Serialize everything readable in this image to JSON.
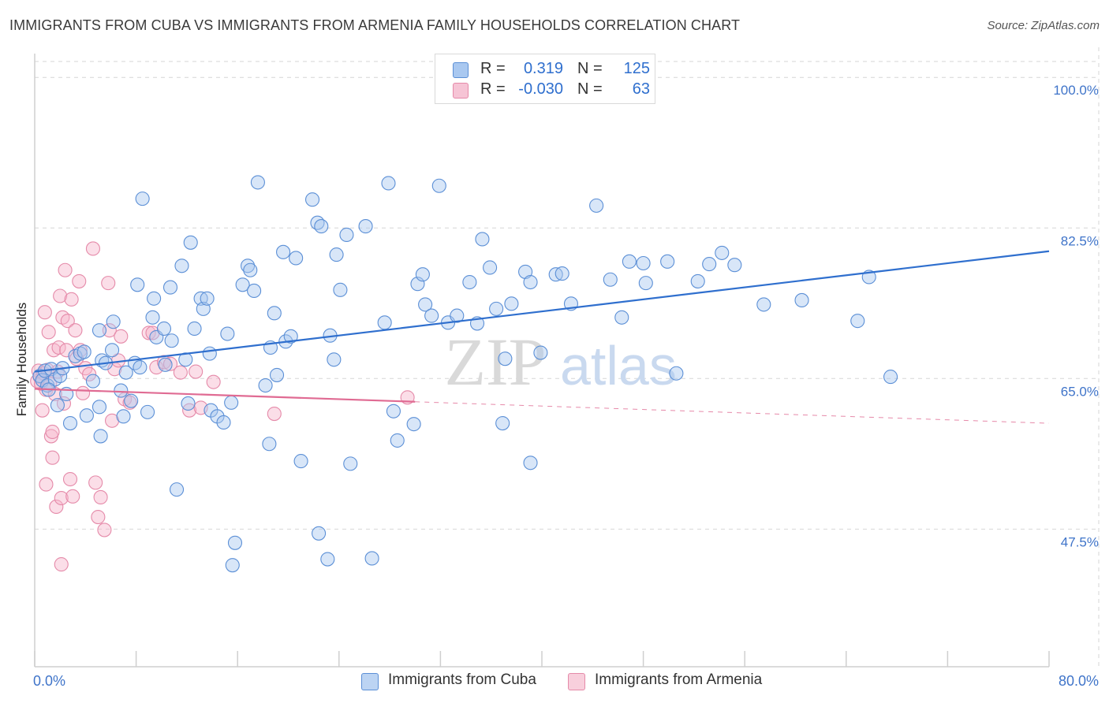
{
  "header": {
    "title": "IMMIGRANTS FROM CUBA VS IMMIGRANTS FROM ARMENIA FAMILY HOUSEHOLDS CORRELATION CHART",
    "source": "Source: ZipAtlas.com"
  },
  "stats_legend": {
    "rows": [
      {
        "r_label": "R =",
        "r_value": "0.319",
        "n_label": "N =",
        "n_value": "125"
      },
      {
        "r_label": "R =",
        "r_value": "-0.030",
        "n_label": "N =",
        "n_value": "63"
      }
    ]
  },
  "watermark": {
    "zip": "ZIP",
    "atlas": "atlas"
  },
  "colors": {
    "cuba_fill": "#a9c8f0",
    "cuba_stroke": "#5b8fd6",
    "cuba_line": "#2f6fce",
    "armenia_fill": "#f6b6cb",
    "armenia_stroke": "#e58aa9",
    "armenia_line": "#e06b93",
    "grid": "#d6d6d6",
    "axis_label": "#3f74c9"
  },
  "chart_data": {
    "type": "scatter",
    "title": "IMMIGRANTS FROM CUBA VS IMMIGRANTS FROM ARMENIA FAMILY HOUSEHOLDS CORRELATION CHART",
    "xlabel": "",
    "ylabel": "Family Households",
    "xlim": [
      0,
      80
    ],
    "ylim": [
      31.5,
      103.5
    ],
    "x_tick_labels": [
      {
        "value": 0,
        "label": "0.0%"
      },
      {
        "value": 80,
        "label": "80.0%"
      }
    ],
    "y_tick_labels": [
      {
        "value": 100,
        "label": "100.0%"
      },
      {
        "value": 82.5,
        "label": "82.5%"
      },
      {
        "value": 65,
        "label": "65.0%"
      },
      {
        "value": 47.5,
        "label": "47.5%"
      }
    ],
    "x_minor_ticks": [
      0,
      8,
      16,
      24,
      32,
      40,
      48,
      56,
      64,
      72,
      80
    ],
    "series": [
      {
        "name": "Immigrants from Cuba",
        "color": "#5b8fd6",
        "trend": {
          "x": [
            0,
            80
          ],
          "y": [
            65.8,
            79.8
          ],
          "style": "solid"
        },
        "points": [
          [
            0.4,
            65.3
          ],
          [
            0.6,
            64.8
          ],
          [
            0.8,
            65.9
          ],
          [
            1.0,
            64.2
          ],
          [
            1.3,
            66.1
          ],
          [
            1.6,
            64.9
          ],
          [
            2.0,
            65.3
          ],
          [
            2.2,
            66.2
          ],
          [
            2.5,
            63.2
          ],
          [
            1.1,
            63.7
          ],
          [
            1.8,
            61.9
          ],
          [
            2.8,
            59.8
          ],
          [
            3.2,
            67.6
          ],
          [
            3.6,
            67.9
          ],
          [
            3.9,
            68.1
          ],
          [
            4.1,
            60.7
          ],
          [
            4.6,
            64.7
          ],
          [
            5.1,
            70.6
          ],
          [
            5.3,
            67.1
          ],
          [
            5.2,
            58.3
          ],
          [
            5.1,
            61.7
          ],
          [
            5.6,
            66.8
          ],
          [
            6.1,
            68.3
          ],
          [
            6.2,
            71.6
          ],
          [
            6.8,
            63.6
          ],
          [
            7.0,
            60.6
          ],
          [
            7.2,
            65.7
          ],
          [
            7.6,
            62.4
          ],
          [
            7.9,
            66.8
          ],
          [
            8.3,
            66.3
          ],
          [
            8.1,
            75.9
          ],
          [
            8.5,
            85.9
          ],
          [
            8.9,
            61.1
          ],
          [
            9.3,
            72.1
          ],
          [
            9.4,
            74.3
          ],
          [
            9.6,
            69.8
          ],
          [
            10.2,
            70.8
          ],
          [
            10.3,
            66.6
          ],
          [
            10.7,
            75.6
          ],
          [
            10.8,
            69.4
          ],
          [
            11.2,
            52.1
          ],
          [
            11.6,
            78.1
          ],
          [
            11.9,
            67.2
          ],
          [
            12.1,
            62.1
          ],
          [
            12.3,
            80.8
          ],
          [
            12.6,
            70.8
          ],
          [
            13.1,
            74.3
          ],
          [
            13.3,
            73.1
          ],
          [
            13.6,
            74.3
          ],
          [
            13.8,
            67.9
          ],
          [
            13.9,
            61.3
          ],
          [
            14.4,
            60.6
          ],
          [
            14.9,
            59.9
          ],
          [
            15.2,
            70.2
          ],
          [
            15.5,
            62.2
          ],
          [
            15.6,
            43.3
          ],
          [
            15.8,
            45.9
          ],
          [
            16.4,
            75.9
          ],
          [
            16.8,
            78.1
          ],
          [
            17.0,
            77.6
          ],
          [
            17.3,
            75.2
          ],
          [
            17.6,
            87.8
          ],
          [
            18.2,
            64.2
          ],
          [
            18.5,
            57.4
          ],
          [
            18.6,
            68.6
          ],
          [
            18.9,
            72.6
          ],
          [
            19.1,
            65.4
          ],
          [
            19.6,
            79.7
          ],
          [
            19.8,
            69.3
          ],
          [
            20.2,
            69.9
          ],
          [
            20.6,
            79.0
          ],
          [
            21.0,
            55.4
          ],
          [
            21.9,
            85.8
          ],
          [
            22.3,
            83.1
          ],
          [
            22.6,
            82.7
          ],
          [
            22.4,
            47.0
          ],
          [
            23.1,
            44.0
          ],
          [
            23.3,
            70.0
          ],
          [
            23.6,
            67.2
          ],
          [
            23.8,
            79.4
          ],
          [
            24.1,
            75.3
          ],
          [
            24.6,
            81.7
          ],
          [
            24.9,
            55.1
          ],
          [
            26.1,
            82.7
          ],
          [
            26.6,
            44.1
          ],
          [
            27.6,
            71.5
          ],
          [
            27.9,
            87.7
          ],
          [
            28.3,
            61.2
          ],
          [
            28.6,
            57.8
          ],
          [
            29.9,
            59.7
          ],
          [
            30.2,
            76.0
          ],
          [
            30.6,
            77.1
          ],
          [
            30.8,
            73.6
          ],
          [
            31.3,
            72.3
          ],
          [
            31.9,
            87.4
          ],
          [
            32.6,
            71.5
          ],
          [
            33.3,
            72.3
          ],
          [
            34.3,
            76.2
          ],
          [
            34.9,
            71.4
          ],
          [
            35.3,
            81.2
          ],
          [
            35.9,
            77.9
          ],
          [
            36.4,
            73.1
          ],
          [
            36.9,
            59.8
          ],
          [
            37.1,
            67.3
          ],
          [
            37.6,
            73.7
          ],
          [
            38.7,
            77.4
          ],
          [
            39.1,
            76.2
          ],
          [
            39.1,
            55.2
          ],
          [
            39.9,
            68.0
          ],
          [
            41.1,
            77.1
          ],
          [
            41.6,
            77.2
          ],
          [
            42.3,
            73.7
          ],
          [
            44.3,
            85.1
          ],
          [
            45.4,
            76.5
          ],
          [
            46.3,
            72.1
          ],
          [
            46.9,
            78.6
          ],
          [
            48.0,
            78.4
          ],
          [
            48.2,
            76.1
          ],
          [
            49.9,
            78.6
          ],
          [
            50.6,
            65.6
          ],
          [
            52.3,
            76.3
          ],
          [
            53.2,
            78.3
          ],
          [
            54.2,
            79.6
          ],
          [
            55.2,
            78.2
          ],
          [
            57.5,
            73.6
          ],
          [
            60.5,
            74.1
          ],
          [
            64.9,
            71.7
          ],
          [
            65.8,
            76.8
          ],
          [
            67.5,
            65.2
          ]
        ]
      },
      {
        "name": "Immigrants from Armenia",
        "color": "#e58aa9",
        "trend": {
          "x": [
            0,
            30
          ],
          "y": [
            63.8,
            62.3
          ],
          "style": "solid",
          "extended": {
            "x": [
              30,
              80
            ],
            "y": [
              62.3,
              59.8
            ],
            "style": "dashed"
          }
        },
        "points": [
          [
            0.2,
            64.7
          ],
          [
            0.3,
            65.9
          ],
          [
            0.4,
            65.2
          ],
          [
            0.5,
            64.4
          ],
          [
            0.6,
            61.3
          ],
          [
            0.7,
            65.6
          ],
          [
            0.8,
            72.7
          ],
          [
            0.9,
            63.7
          ],
          [
            0.9,
            52.7
          ],
          [
            1.0,
            66.0
          ],
          [
            1.1,
            70.4
          ],
          [
            1.2,
            64.4
          ],
          [
            1.3,
            58.3
          ],
          [
            1.4,
            58.8
          ],
          [
            1.4,
            55.8
          ],
          [
            1.5,
            68.3
          ],
          [
            1.6,
            63.2
          ],
          [
            1.7,
            50.1
          ],
          [
            1.8,
            65.8
          ],
          [
            1.9,
            68.6
          ],
          [
            2.0,
            74.6
          ],
          [
            2.1,
            51.1
          ],
          [
            2.1,
            43.4
          ],
          [
            2.2,
            72.1
          ],
          [
            2.3,
            62.1
          ],
          [
            2.4,
            77.6
          ],
          [
            2.5,
            68.3
          ],
          [
            2.6,
            71.7
          ],
          [
            2.8,
            53.3
          ],
          [
            2.9,
            74.2
          ],
          [
            3.0,
            51.3
          ],
          [
            3.2,
            70.6
          ],
          [
            3.3,
            67.3
          ],
          [
            3.5,
            76.3
          ],
          [
            3.6,
            68.3
          ],
          [
            3.8,
            63.3
          ],
          [
            4.0,
            66.2
          ],
          [
            4.3,
            65.5
          ],
          [
            4.6,
            80.1
          ],
          [
            4.8,
            52.9
          ],
          [
            5.0,
            48.9
          ],
          [
            5.2,
            51.2
          ],
          [
            5.5,
            47.4
          ],
          [
            5.8,
            76.1
          ],
          [
            5.9,
            70.6
          ],
          [
            6.1,
            60.1
          ],
          [
            6.3,
            66.1
          ],
          [
            6.6,
            67.1
          ],
          [
            6.8,
            69.9
          ],
          [
            7.1,
            62.6
          ],
          [
            7.5,
            62.2
          ],
          [
            9.0,
            70.3
          ],
          [
            9.3,
            70.3
          ],
          [
            9.6,
            66.3
          ],
          [
            10.2,
            66.9
          ],
          [
            10.7,
            66.7
          ],
          [
            11.5,
            65.7
          ],
          [
            12.2,
            61.3
          ],
          [
            12.7,
            65.8
          ],
          [
            13.1,
            61.6
          ],
          [
            14.1,
            64.6
          ],
          [
            18.9,
            60.9
          ],
          [
            29.4,
            62.8
          ]
        ]
      }
    ]
  },
  "bottom_legend": {
    "items": [
      {
        "label": "Immigrants from Cuba"
      },
      {
        "label": "Immigrants from Armenia"
      }
    ]
  }
}
